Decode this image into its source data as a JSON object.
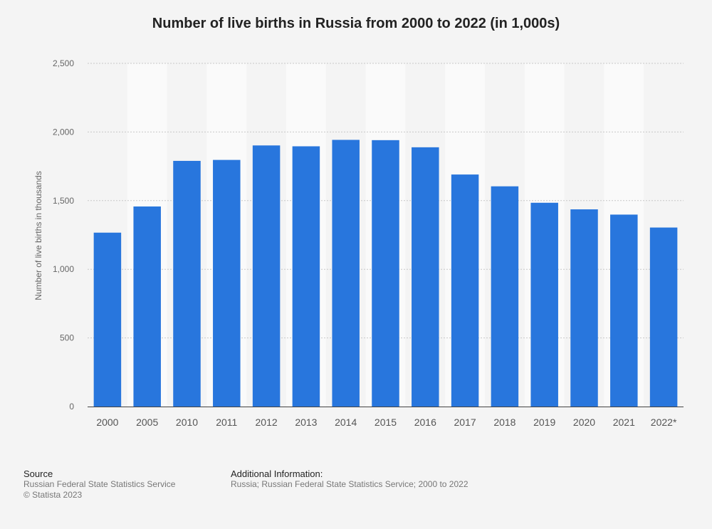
{
  "chart_data": {
    "type": "bar",
    "title": "Number of live births in Russia from 2000 to 2022 (in 1,000s)",
    "ylabel": "Number of live births in thousands",
    "xlabel": "",
    "categories": [
      "2000",
      "2005",
      "2010",
      "2011",
      "2012",
      "2013",
      "2014",
      "2015",
      "2016",
      "2017",
      "2018",
      "2019",
      "2020",
      "2021",
      "2022*"
    ],
    "values": [
      1266.8,
      1457.4,
      1789.6,
      1796.6,
      1902.1,
      1895.8,
      1942.7,
      1940.6,
      1888.7,
      1690.3,
      1604.3,
      1484.5,
      1436.5,
      1398.3,
      1304.1
    ],
    "ylim": [
      0,
      2500
    ],
    "yticks": [
      0,
      500,
      1000,
      1500,
      2000,
      2500
    ],
    "ytick_labels": [
      "0",
      "500",
      "1,000",
      "1,500",
      "2,000",
      "2,500"
    ],
    "grid": true,
    "bar_color": "#2876dd"
  },
  "footer": {
    "source_heading": "Source",
    "source_text": "Russian Federal State Statistics Service",
    "copyright": "© Statista 2023",
    "info_heading": "Additional Information:",
    "info_text": "Russia; Russian Federal State Statistics Service; 2000 to 2022"
  }
}
